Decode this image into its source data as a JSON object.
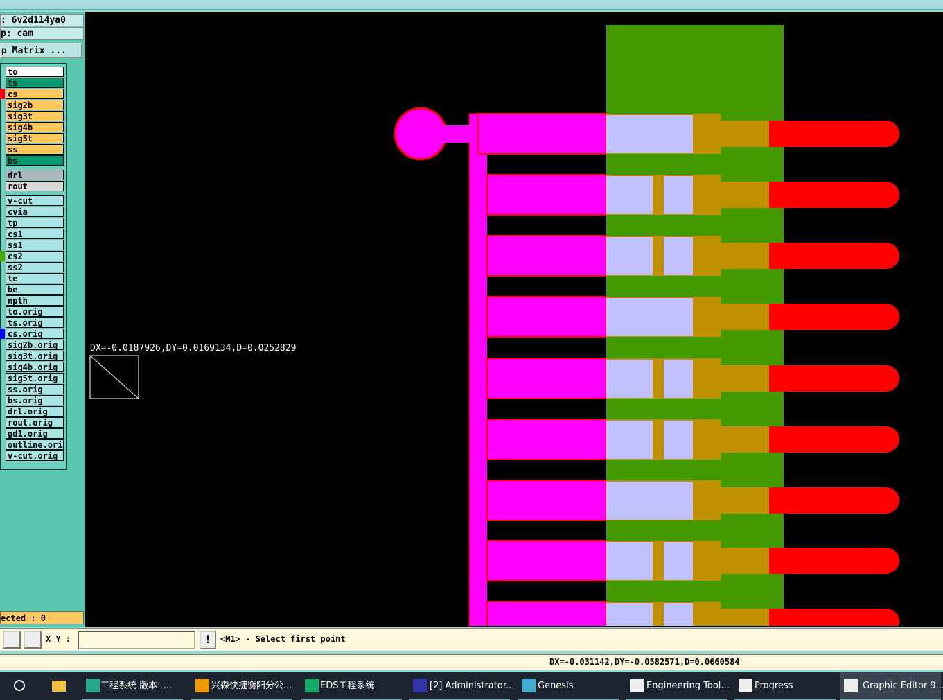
{
  "panel": {
    "job": ": 6v2d114ya0",
    "step": "p: cam",
    "matrix_button": "p Matrix ...",
    "layers": [
      "to",
      "ts",
      "cs",
      "sig2b",
      "sig3t",
      "sig4b",
      "sig5t",
      "ss",
      "bs",
      "drl",
      "rout",
      "v-cut",
      "cvia",
      "tp",
      "cs1",
      "ss1",
      "cs2",
      "ss2",
      "te",
      "be",
      "npth",
      "to.orig",
      "ts.orig",
      "cs.orig",
      "sig2b.orig",
      "sig3t.orig",
      "sig4b.orig",
      "sig5t.orig",
      "ss.orig",
      "bs.orig",
      "drl.orig",
      "rout.orig",
      "gd1.orig",
      "outline.orig",
      "v-cut.orig"
    ],
    "selected": "ected : 0"
  },
  "canvas": {
    "measurement": "DX=-0.0187926,DY=0.0169134,D=0.0252829"
  },
  "toolbar": {
    "xy_label": "X Y :",
    "prompt": "<M1> - Select first point"
  },
  "status": "DX=-0.031142,DY=-0.0582571,D=0.0660584",
  "taskbar": [
    "工程系统  版本: ...",
    "兴森快捷衡阳分公...",
    "EDS工程系统",
    "[2] Administrator...",
    "Genesis",
    "Engineering Tool...",
    "Progress",
    "Graphic Editor 9...."
  ]
}
